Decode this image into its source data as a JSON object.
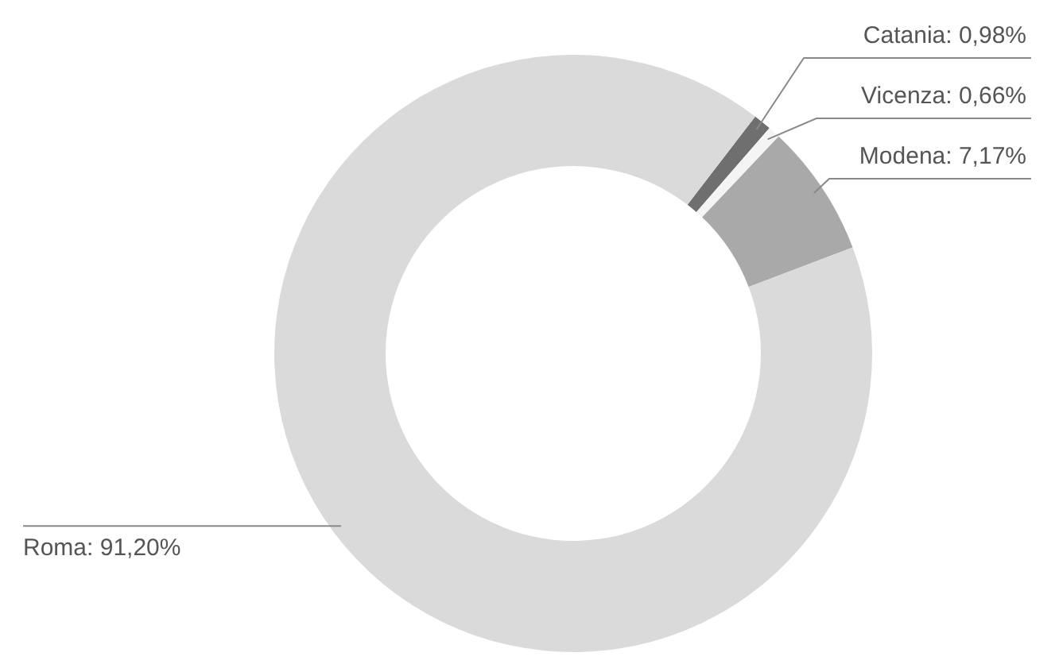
{
  "chart_data": {
    "type": "donut",
    "categories": [
      "Catania",
      "Vicenza",
      "Modena",
      "Roma"
    ],
    "values": [
      0.98,
      0.66,
      7.17,
      91.2
    ],
    "value_labels": [
      "0,98%",
      "0,66%",
      "7,17%",
      "91,20%"
    ],
    "colors": [
      "#6f6f6f",
      "#f4f4f4",
      "#a9a9a9",
      "#dadada"
    ]
  }
}
